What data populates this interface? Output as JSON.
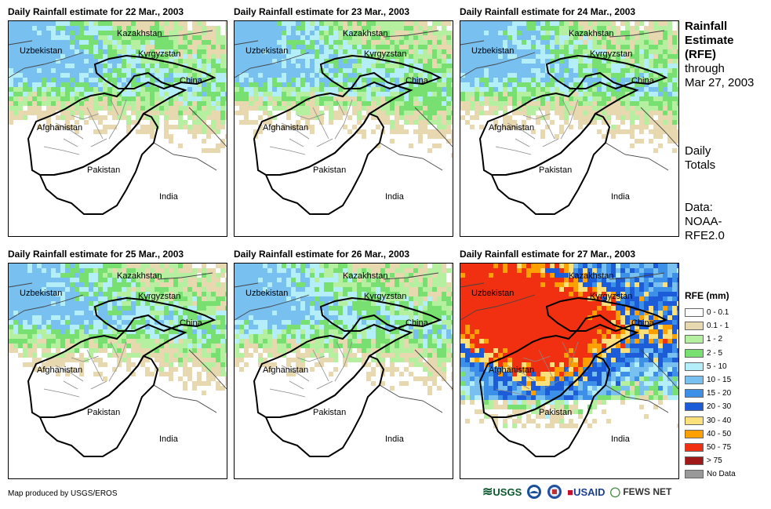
{
  "panels": [
    {
      "title": "Daily Rainfall estimate for 22 Mar., 2003",
      "intensity": 1
    },
    {
      "title": "Daily Rainfall estimate for 23 Mar., 2003",
      "intensity": 1
    },
    {
      "title": "Daily Rainfall estimate for 24 Mar., 2003",
      "intensity": 1
    },
    {
      "title": "Daily Rainfall estimate for 25 Mar., 2003",
      "intensity": 1
    },
    {
      "title": "Daily Rainfall estimate for 26 Mar., 2003",
      "intensity": 1
    },
    {
      "title": "Daily Rainfall estimate for 27 Mar., 2003",
      "intensity": 3
    }
  ],
  "countries": {
    "kazakhstan": "Kazakhstan",
    "uzbekistan": "Uzbekistan",
    "kyrgyzstan": "Kyrgyzstan",
    "china": "China",
    "afghanistan": "Afghanistan",
    "pakistan": "Pakistan",
    "india": "India"
  },
  "side": {
    "title_line1": "Rainfall",
    "title_line2": "Estimate",
    "title_line3": "(RFE)",
    "through": "through",
    "date": "Mar 27, 2003",
    "daily1": "Daily",
    "daily2": "Totals",
    "data1": "Data:",
    "data2": "NOAA-",
    "data3": "RFE2.0"
  },
  "legend": {
    "title": "RFE (mm)",
    "items": [
      {
        "label": "0 - 0.1",
        "color": "#ffffff"
      },
      {
        "label": "0.1 - 1",
        "color": "#e8d8b0"
      },
      {
        "label": "1 - 2",
        "color": "#b4f0a0"
      },
      {
        "label": "2 - 5",
        "color": "#78e070"
      },
      {
        "label": "5 - 10",
        "color": "#b4eef8"
      },
      {
        "label": "10 - 15",
        "color": "#78c0f0"
      },
      {
        "label": "15 - 20",
        "color": "#3c90e8"
      },
      {
        "label": "20 - 30",
        "color": "#1c5cd8"
      },
      {
        "label": "30 - 40",
        "color": "#fce07c"
      },
      {
        "label": "40 - 50",
        "color": "#ffa000"
      },
      {
        "label": "50 - 75",
        "color": "#f03010"
      },
      {
        "label": "> 75",
        "color": "#a01818"
      },
      {
        "label": "No Data",
        "color": "#999999"
      }
    ]
  },
  "footer": {
    "credit": "Map produced by USGS/EROS"
  },
  "logos": {
    "usgs": "USGS",
    "usaid": "USAID",
    "fewsnet": "FEWS NET"
  }
}
